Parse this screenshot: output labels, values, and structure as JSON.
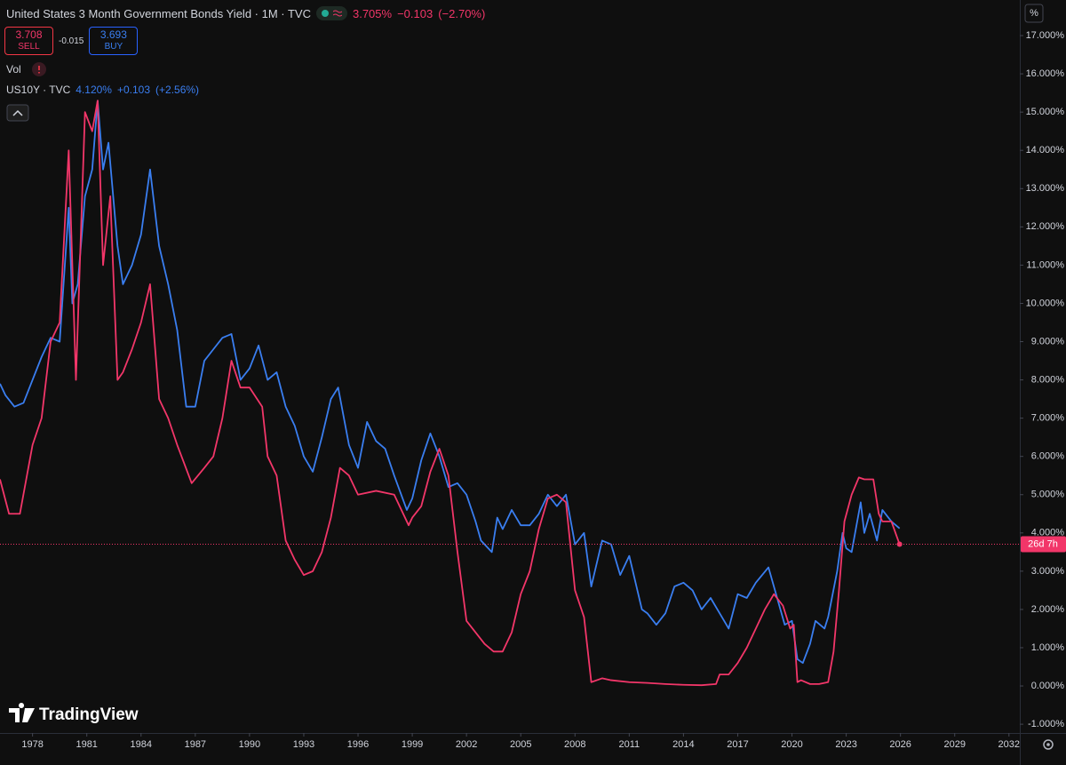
{
  "chart_data": {
    "type": "line",
    "xlim": [
      1976.2,
      2032.6
    ],
    "xticks": [
      1978,
      1981,
      1984,
      1987,
      1990,
      1993,
      1996,
      1999,
      2002,
      2005,
      2008,
      2011,
      2014,
      2017,
      2020,
      2023,
      2026,
      2029,
      2032
    ],
    "ylim": [
      -1.23,
      17.93
    ],
    "yticks": [
      {
        "value": -1,
        "label": "-1.000%"
      },
      {
        "value": 0,
        "label": "0.000%"
      },
      {
        "value": 1,
        "label": "1.000%"
      },
      {
        "value": 2,
        "label": "2.000%"
      },
      {
        "value": 3,
        "label": "3.000%"
      },
      {
        "value": 4,
        "label": "4.000%"
      },
      {
        "value": 5,
        "label": "5.000%"
      },
      {
        "value": 6,
        "label": "6.000%"
      },
      {
        "value": 7,
        "label": "7.000%"
      },
      {
        "value": 8,
        "label": "8.000%"
      },
      {
        "value": 9,
        "label": "9.000%"
      },
      {
        "value": 10,
        "label": "10.000%"
      },
      {
        "value": 11,
        "label": "11.000%"
      },
      {
        "value": 12,
        "label": "12.000%"
      },
      {
        "value": 13,
        "label": "13.000%"
      },
      {
        "value": 14,
        "label": "14.000%"
      },
      {
        "value": 15,
        "label": "15.000%"
      },
      {
        "value": 16,
        "label": "16.000%"
      },
      {
        "value": 17,
        "label": "17.000%"
      }
    ],
    "grid": false,
    "unit": "%",
    "price_line": 3.705,
    "countdown": "26d 7h",
    "logo": "TradingView",
    "header": {
      "sell": "3.708",
      "sell_label": "SELL",
      "spread": "-0.015",
      "buy": "3.693",
      "buy_label": "BUY",
      "vol": "Vol"
    },
    "series": [
      {
        "name": "United States 3 Month Government Bonds Yield · 1M · TVC",
        "color": "#f23669",
        "quote": "3.705%",
        "change": "−0.103",
        "change_pct": "(−2.70%)",
        "x": [
          1976.2,
          1976.7,
          1977.3,
          1978,
          1978.5,
          1979,
          1979.5,
          1980,
          1980.4,
          1980.9,
          1981.3,
          1981.6,
          1981.9,
          1982.3,
          1982.7,
          1983,
          1983.5,
          1984,
          1984.5,
          1985,
          1985.5,
          1986,
          1986.8,
          1987.5,
          1988,
          1988.5,
          1989,
          1989.5,
          1990,
          1990.7,
          1991,
          1991.5,
          1992,
          1992.5,
          1993,
          1993.5,
          1994,
          1994.5,
          1995,
          1995.5,
          1996,
          1997,
          1998,
          1998.8,
          1999,
          1999.5,
          2000,
          2000.5,
          2001,
          2001.5,
          2002,
          2003,
          2003.5,
          2004,
          2004.5,
          2005,
          2005.5,
          2006,
          2006.5,
          2007,
          2007.5,
          2008,
          2008.5,
          2008.9,
          2009.5,
          2010,
          2011,
          2012,
          2013,
          2014,
          2015,
          2015.8,
          2016,
          2016.5,
          2017,
          2017.5,
          2018,
          2018.5,
          2019,
          2019.5,
          2019.9,
          2020.1,
          2020.3,
          2020.5,
          2021,
          2021.5,
          2022,
          2022.3,
          2022.6,
          2022.9,
          2023.3,
          2023.7,
          2024,
          2024.5,
          2024.8,
          2025,
          2025.5,
          2025.8,
          2025.95
        ],
        "values": [
          5.4,
          4.5,
          4.5,
          6.3,
          7.0,
          9.0,
          9.5,
          14.0,
          8.0,
          15.0,
          14.5,
          15.3,
          11.0,
          12.8,
          8.0,
          8.2,
          8.8,
          9.5,
          10.5,
          7.5,
          7.0,
          6.3,
          5.3,
          5.7,
          6.0,
          7.0,
          8.5,
          7.8,
          7.8,
          7.3,
          6.0,
          5.5,
          3.8,
          3.3,
          2.9,
          3.0,
          3.5,
          4.4,
          5.7,
          5.5,
          5.0,
          5.1,
          5.0,
          4.2,
          4.4,
          4.7,
          5.6,
          6.2,
          5.5,
          3.5,
          1.7,
          1.1,
          0.9,
          0.9,
          1.4,
          2.4,
          3.0,
          4.1,
          4.9,
          5.0,
          4.8,
          2.5,
          1.8,
          0.1,
          0.2,
          0.15,
          0.1,
          0.08,
          0.05,
          0.03,
          0.02,
          0.05,
          0.3,
          0.3,
          0.6,
          1.0,
          1.5,
          2.0,
          2.4,
          2.1,
          1.5,
          1.6,
          0.1,
          0.15,
          0.05,
          0.05,
          0.1,
          0.9,
          2.5,
          4.3,
          5.0,
          5.45,
          5.4,
          5.4,
          4.5,
          4.3,
          4.3,
          3.9,
          3.705
        ]
      },
      {
        "name": "US10Y · TVC",
        "color": "#3a7ef0",
        "quote": "4.120%",
        "change": "+0.103",
        "change_pct": "(+2.56%)",
        "x": [
          1976.2,
          1976.5,
          1977,
          1977.5,
          1978,
          1978.5,
          1979,
          1979.5,
          1980,
          1980.2,
          1980.5,
          1980.9,
          1981.3,
          1981.6,
          1981.9,
          1982.2,
          1982.7,
          1983,
          1983.5,
          1984,
          1984.5,
          1985,
          1985.5,
          1986,
          1986.5,
          1987,
          1987.5,
          1988,
          1988.5,
          1989,
          1989.5,
          1990,
          1990.5,
          1991,
          1991.5,
          1992,
          1992.5,
          1993,
          1993.5,
          1994,
          1994.5,
          1994.9,
          1995.5,
          1996,
          1996.5,
          1997,
          1997.5,
          1998,
          1998.7,
          1999,
          1999.5,
          2000,
          2000.5,
          2001,
          2001.5,
          2002,
          2002.5,
          2002.8,
          2003.4,
          2003.7,
          2004,
          2004.5,
          2005,
          2005.5,
          2006,
          2006.5,
          2007,
          2007.5,
          2008,
          2008.5,
          2008.9,
          2009.5,
          2010,
          2010.5,
          2011,
          2011.7,
          2012,
          2012.5,
          2013,
          2013.5,
          2014,
          2014.5,
          2015,
          2015.5,
          2016,
          2016.5,
          2017,
          2017.5,
          2018,
          2018.7,
          2019,
          2019.6,
          2020,
          2020.3,
          2020.6,
          2021,
          2021.3,
          2021.8,
          2022,
          2022.5,
          2022.8,
          2023,
          2023.3,
          2023.8,
          2024,
          2024.3,
          2024.7,
          2025,
          2025.5,
          2025.95
        ],
        "values": [
          7.9,
          7.6,
          7.3,
          7.4,
          8.0,
          8.6,
          9.1,
          9.0,
          12.5,
          10.0,
          10.5,
          12.8,
          13.5,
          15.3,
          13.5,
          14.2,
          11.5,
          10.5,
          11.0,
          11.8,
          13.5,
          11.5,
          10.5,
          9.3,
          7.3,
          7.3,
          8.5,
          8.8,
          9.1,
          9.2,
          8.0,
          8.3,
          8.9,
          8.0,
          8.2,
          7.3,
          6.8,
          6.0,
          5.6,
          6.5,
          7.5,
          7.8,
          6.3,
          5.7,
          6.9,
          6.4,
          6.2,
          5.5,
          4.6,
          4.9,
          5.9,
          6.6,
          6.0,
          5.2,
          5.3,
          5.0,
          4.3,
          3.8,
          3.5,
          4.4,
          4.1,
          4.6,
          4.2,
          4.2,
          4.5,
          5.0,
          4.7,
          5.0,
          3.7,
          4.0,
          2.6,
          3.8,
          3.7,
          2.9,
          3.4,
          2.0,
          1.9,
          1.6,
          1.9,
          2.6,
          2.7,
          2.5,
          2.0,
          2.3,
          1.9,
          1.5,
          2.4,
          2.3,
          2.7,
          3.1,
          2.6,
          1.6,
          1.7,
          0.7,
          0.6,
          1.1,
          1.7,
          1.5,
          1.8,
          3.0,
          4.0,
          3.6,
          3.5,
          4.8,
          4.0,
          4.5,
          3.8,
          4.6,
          4.3,
          4.12
        ]
      }
    ]
  }
}
